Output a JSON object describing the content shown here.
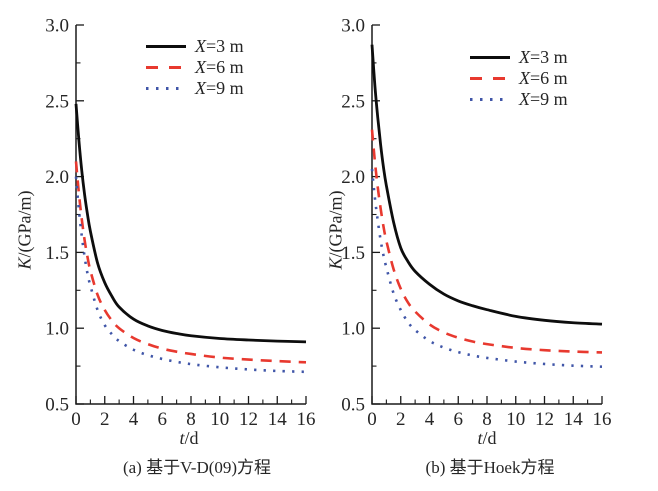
{
  "page": {
    "background": "#ffffff",
    "axis_color": "#1a1a1a",
    "text_color": "#262626"
  },
  "chart_data": [
    {
      "id": "a",
      "type": "line",
      "caption": "(a) 基于V-D(09)方程",
      "xlabel_var": "t",
      "xlabel_rest": "/d",
      "ylabel_var": "K",
      "ylabel_rest": "/(GPa/m)",
      "xlim": [
        0,
        16
      ],
      "ylim": [
        0.5,
        3.0
      ],
      "xticks": [
        0,
        2,
        4,
        6,
        8,
        10,
        12,
        14,
        16
      ],
      "yticks": [
        0.5,
        1.0,
        1.5,
        2.0,
        2.5,
        3.0
      ],
      "x_minor_step": 1,
      "y_minor_step": 0.25,
      "grid": false,
      "legend_position": "upper-center",
      "x": [
        0,
        0.2,
        0.4,
        0.6,
        0.8,
        1,
        1.5,
        2,
        2.5,
        3,
        4,
        5,
        6,
        7,
        8,
        10,
        12,
        14,
        16
      ],
      "series": [
        {
          "var": "X",
          "label": "=3 m",
          "color": "#0d0d0d",
          "style": "solid",
          "values": [
            2.48,
            2.24,
            2.04,
            1.88,
            1.75,
            1.64,
            1.43,
            1.3,
            1.21,
            1.14,
            1.06,
            1.015,
            0.985,
            0.965,
            0.95,
            0.932,
            0.922,
            0.915,
            0.91
          ]
        },
        {
          "var": "X",
          "label": "=6 m",
          "color": "#e8392f",
          "style": "dashed",
          "values": [
            2.1,
            1.89,
            1.72,
            1.58,
            1.47,
            1.38,
            1.22,
            1.12,
            1.05,
            1.0,
            0.935,
            0.895,
            0.865,
            0.845,
            0.83,
            0.806,
            0.793,
            0.783,
            0.775
          ]
        },
        {
          "var": "X",
          "label": "=9 m",
          "color": "#4056a8",
          "style": "dotted",
          "values": [
            2.0,
            1.78,
            1.61,
            1.47,
            1.36,
            1.28,
            1.12,
            1.02,
            0.96,
            0.915,
            0.858,
            0.822,
            0.797,
            0.778,
            0.763,
            0.742,
            0.728,
            0.718,
            0.712
          ]
        }
      ]
    },
    {
      "id": "b",
      "type": "line",
      "caption": "(b) 基于Hoek方程",
      "xlabel_var": "t",
      "xlabel_rest": "/d",
      "ylabel_var": "K",
      "ylabel_rest": "/(GPa/m)",
      "xlim": [
        0,
        16
      ],
      "ylim": [
        0.5,
        3.0
      ],
      "xticks": [
        0,
        2,
        4,
        6,
        8,
        10,
        12,
        14,
        16
      ],
      "yticks": [
        0.5,
        1.0,
        1.5,
        2.0,
        2.5,
        3.0
      ],
      "x_minor_step": 1,
      "y_minor_step": 0.25,
      "grid": false,
      "legend_position": "upper-center",
      "x": [
        0,
        0.2,
        0.4,
        0.6,
        0.8,
        1,
        1.5,
        2,
        2.5,
        3,
        4,
        5,
        6,
        7,
        8,
        10,
        12,
        14,
        16
      ],
      "series": [
        {
          "var": "X",
          "label": "=3 m",
          "color": "#0d0d0d",
          "style": "solid",
          "values": [
            2.87,
            2.6,
            2.39,
            2.21,
            2.06,
            1.94,
            1.7,
            1.53,
            1.44,
            1.375,
            1.29,
            1.225,
            1.18,
            1.148,
            1.122,
            1.078,
            1.052,
            1.036,
            1.027
          ]
        },
        {
          "var": "X",
          "label": "=6 m",
          "color": "#e8392f",
          "style": "dashed",
          "values": [
            2.31,
            2.1,
            1.93,
            1.79,
            1.67,
            1.575,
            1.39,
            1.26,
            1.17,
            1.11,
            1.025,
            0.972,
            0.937,
            0.912,
            0.895,
            0.87,
            0.855,
            0.846,
            0.84
          ]
        },
        {
          "var": "X",
          "label": "=9 m",
          "color": "#4056a8",
          "style": "dotted",
          "values": [
            2.05,
            1.86,
            1.71,
            1.58,
            1.48,
            1.4,
            1.23,
            1.12,
            1.04,
            0.988,
            0.916,
            0.872,
            0.842,
            0.82,
            0.804,
            0.78,
            0.764,
            0.753,
            0.746
          ]
        }
      ]
    }
  ]
}
